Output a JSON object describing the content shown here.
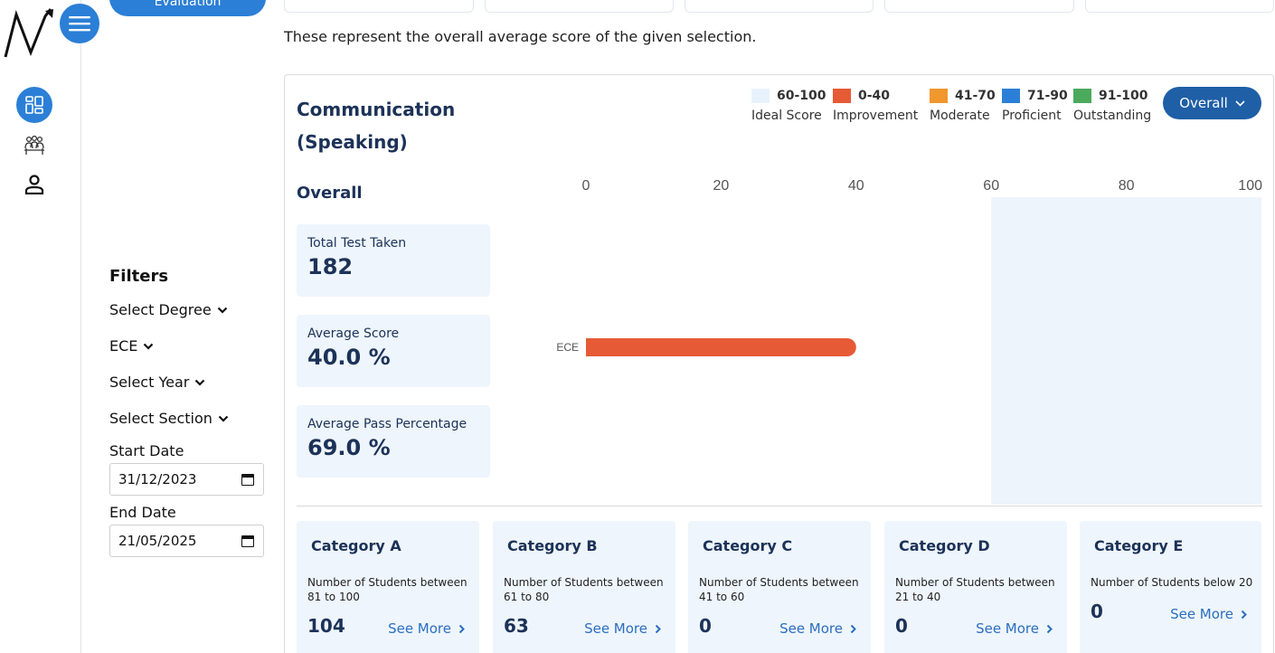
{
  "nav": {
    "evaluation_label": "Evaluation",
    "icons": [
      "logo-mark",
      "hamburger-icon",
      "dashboard-icon",
      "people-icon",
      "profile-icon"
    ]
  },
  "filters": {
    "title": "Filters",
    "degree": "Select Degree",
    "branch": "ECE",
    "year": "Select Year",
    "section": "Select Section",
    "start_label": "Start Date",
    "start_value": "31/12/2023",
    "end_label": "End Date",
    "end_value": "21/05/2025"
  },
  "main": {
    "info_text": "These represent the overall average score of the given selection.",
    "card_title": "Communication (Speaking)",
    "overall_button": "Overall",
    "section_title": "Overall",
    "stats": [
      {
        "label": "Total Test Taken",
        "value": "182"
      },
      {
        "label": "Average Score",
        "value": "40.0 %"
      },
      {
        "label": "Average Pass Percentage",
        "value": "69.0 %"
      }
    ],
    "legend": [
      {
        "range": "60-100",
        "label": "Ideal Score",
        "color": "#e8f2fc"
      },
      {
        "range": "0-40",
        "label": "Improvement",
        "color": "#e65a36"
      },
      {
        "range": "41-70",
        "label": "Moderate",
        "color": "#f0972e"
      },
      {
        "range": "71-90",
        "label": "Proficient",
        "color": "#2b7fd6"
      },
      {
        "range": "91-100",
        "label": "Outstanding",
        "color": "#4caa5d"
      }
    ],
    "categories": [
      {
        "title": "Category A",
        "desc": "Number of Students between 81 to 100",
        "count": "104",
        "more": "See More"
      },
      {
        "title": "Category B",
        "desc": "Number of Students between 61 to 80",
        "count": "63",
        "more": "See More"
      },
      {
        "title": "Category C",
        "desc": "Number of Students between 41 to 60",
        "count": "0",
        "more": "See More"
      },
      {
        "title": "Category D",
        "desc": "Number of Students between 21 to 40",
        "count": "0",
        "more": "See More"
      },
      {
        "title": "Category E",
        "desc": "Number of Students below 20",
        "count": "0",
        "more": "See More"
      }
    ]
  },
  "chart_data": {
    "type": "bar",
    "orientation": "horizontal",
    "categories": [
      "ECE"
    ],
    "values": [
      40
    ],
    "xticks": [
      "0",
      "20",
      "40",
      "60",
      "80",
      "100"
    ],
    "xlim": [
      0,
      100
    ],
    "ideal_band": [
      60,
      100
    ],
    "bar_color": "#e65a36",
    "band_color": "#eef4fc"
  }
}
